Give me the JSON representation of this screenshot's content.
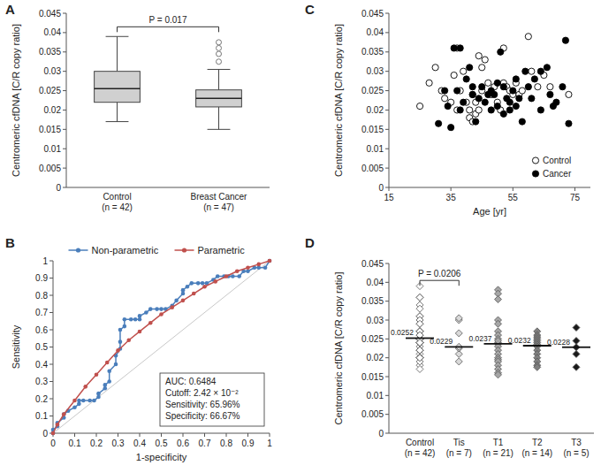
{
  "chart_data": [
    {
      "type": "box",
      "title": "A",
      "y_label": "Centromeric cfDNA [C/R copy ratio]",
      "categories": [
        "Control\n(n = 42)",
        "Breast Cancer\n(n = 47)"
      ],
      "boxes": [
        {
          "min": 0.017,
          "q1": 0.022,
          "median": 0.0255,
          "q3": 0.03,
          "max": 0.039,
          "outliers": []
        },
        {
          "min": 0.015,
          "q1": 0.0208,
          "median": 0.023,
          "q3": 0.0252,
          "max": 0.0305,
          "outliers": [
            0.0325,
            0.0345,
            0.036,
            0.0375
          ]
        }
      ],
      "color": "#d0d0d0",
      "ylim": [
        0,
        0.045
      ],
      "yticks": [
        0,
        0.005,
        0.01,
        0.015,
        0.02,
        0.025,
        0.03,
        0.035,
        0.04,
        0.045
      ],
      "annotations": [
        {
          "text": "P = 0.017",
          "y": 0.0415
        }
      ]
    },
    {
      "type": "line",
      "title": "B",
      "x_label": "1-specificity",
      "y_label": "Sensitivity",
      "xlim": [
        0,
        1
      ],
      "ylim": [
        0,
        1
      ],
      "xticks": [
        0,
        0.1,
        0.2,
        0.3,
        0.4,
        0.5,
        0.6,
        0.7,
        0.8,
        0.9,
        1
      ],
      "yticks": [
        0,
        0.1,
        0.2,
        0.3,
        0.4,
        0.5,
        0.6,
        0.7,
        0.8,
        0.9,
        1
      ],
      "legend": "top",
      "series": [
        {
          "name": "Non-parametric",
          "color": "#4a7ebb",
          "marker": "circle",
          "x": [
            0,
            0,
            0.02,
            0.02,
            0.05,
            0.05,
            0.07,
            0.1,
            0.12,
            0.12,
            0.14,
            0.17,
            0.19,
            0.21,
            0.21,
            0.24,
            0.24,
            0.26,
            0.26,
            0.29,
            0.29,
            0.31,
            0.31,
            0.31,
            0.33,
            0.33,
            0.36,
            0.38,
            0.4,
            0.4,
            0.43,
            0.45,
            0.48,
            0.5,
            0.52,
            0.55,
            0.57,
            0.6,
            0.6,
            0.62,
            0.64,
            0.67,
            0.69,
            0.71,
            0.74,
            0.76,
            0.79,
            0.81,
            0.83,
            0.86,
            0.88,
            0.9,
            0.93,
            0.95,
            0.98,
            1
          ],
          "values": [
            0,
            0.02,
            0.04,
            0.06,
            0.09,
            0.11,
            0.13,
            0.15,
            0.17,
            0.19,
            0.19,
            0.19,
            0.19,
            0.21,
            0.23,
            0.26,
            0.28,
            0.3,
            0.36,
            0.4,
            0.45,
            0.49,
            0.53,
            0.6,
            0.62,
            0.66,
            0.66,
            0.66,
            0.66,
            0.68,
            0.7,
            0.72,
            0.72,
            0.72,
            0.72,
            0.74,
            0.77,
            0.81,
            0.83,
            0.85,
            0.87,
            0.87,
            0.87,
            0.87,
            0.89,
            0.91,
            0.91,
            0.91,
            0.91,
            0.91,
            0.94,
            0.94,
            0.96,
            0.96,
            0.96,
            1
          ]
        },
        {
          "name": "Parametric",
          "color": "#c0504d",
          "marker": "circle",
          "x": [
            0,
            0.02,
            0.05,
            0.1,
            0.15,
            0.2,
            0.25,
            0.3,
            0.35,
            0.4,
            0.45,
            0.5,
            0.55,
            0.6,
            0.65,
            0.7,
            0.75,
            0.8,
            0.85,
            0.9,
            0.95,
            1
          ],
          "values": [
            0,
            0.05,
            0.11,
            0.19,
            0.27,
            0.34,
            0.41,
            0.48,
            0.54,
            0.59,
            0.64,
            0.69,
            0.73,
            0.77,
            0.81,
            0.85,
            0.88,
            0.91,
            0.94,
            0.96,
            0.98,
            1
          ]
        }
      ],
      "annotations": [
        "AUC: 0.6484",
        "Cutoff: 2.42 × 10⁻²",
        "Sensitivity: 65.96%",
        "Specificity: 66.67%"
      ]
    },
    {
      "type": "scatter",
      "title": "C",
      "x_label": "Age [yr]",
      "y_label": "Centromeric cfDNA [C/R copy ratio]",
      "xlim": [
        15,
        80
      ],
      "xticks": [
        15,
        35,
        55,
        75
      ],
      "ylim": [
        0,
        0.045
      ],
      "yticks": [
        0,
        0.005,
        0.01,
        0.015,
        0.02,
        0.025,
        0.03,
        0.035,
        0.04,
        0.045
      ],
      "legend": "bottom-right",
      "series": [
        {
          "name": "Control",
          "color": "#000000",
          "marker": "circle-open",
          "x": [
            25,
            28,
            30,
            32,
            33,
            35,
            36,
            37,
            37,
            38,
            39,
            40,
            41,
            41,
            42,
            42,
            43,
            43,
            44,
            44,
            45,
            45,
            46,
            47,
            48,
            49,
            50,
            51,
            52,
            52,
            53,
            54,
            55,
            56,
            57,
            58,
            60,
            61,
            63,
            65,
            67,
            73
          ],
          "values": [
            0.021,
            0.027,
            0.031,
            0.025,
            0.023,
            0.022,
            0.029,
            0.036,
            0.02,
            0.025,
            0.03,
            0.022,
            0.018,
            0.02,
            0.017,
            0.024,
            0.019,
            0.022,
            0.02,
            0.034,
            0.025,
            0.031,
            0.033,
            0.027,
            0.024,
            0.026,
            0.022,
            0.02,
            0.027,
            0.036,
            0.026,
            0.025,
            0.024,
            0.027,
            0.024,
            0.025,
            0.039,
            0.03,
            0.026,
            0.029,
            0.026,
            0.024
          ]
        },
        {
          "name": "Cancer",
          "color": "#000000",
          "marker": "circle",
          "x": [
            31,
            33,
            34,
            35,
            36,
            37,
            38,
            38,
            39,
            40,
            41,
            42,
            42,
            43,
            44,
            45,
            46,
            47,
            48,
            48,
            49,
            50,
            50,
            51,
            52,
            52,
            53,
            54,
            54,
            55,
            56,
            56,
            57,
            58,
            59,
            60,
            61,
            62,
            64,
            64,
            66,
            67,
            68,
            69,
            71,
            72,
            73
          ],
          "values": [
            0.0165,
            0.025,
            0.021,
            0.0155,
            0.036,
            0.025,
            0.036,
            0.02,
            0.022,
            0.028,
            0.031,
            0.024,
            0.026,
            0.017,
            0.023,
            0.026,
            0.022,
            0.024,
            0.025,
            0.02,
            0.024,
            0.027,
            0.021,
            0.035,
            0.019,
            0.026,
            0.023,
            0.02,
            0.022,
            0.025,
            0.028,
            0.021,
            0.023,
            0.017,
            0.03,
            0.026,
            0.023,
            0.028,
            0.02,
            0.03,
            0.031,
            0.024,
            0.021,
            0.022,
            0.026,
            0.038,
            0.0165
          ]
        }
      ]
    },
    {
      "type": "dot",
      "title": "D",
      "y_label": "Centromeric cfDNA [C/R copy ratio]",
      "categories": [
        "Control\n(n = 42)",
        "Tis\n(n = 7)",
        "T1\n(n = 21)",
        "T2\n(n = 14)",
        "T3\n(n = 5)"
      ],
      "values": [
        [
          0.021,
          0.027,
          0.031,
          0.025,
          0.023,
          0.022,
          0.029,
          0.036,
          0.02,
          0.025,
          0.03,
          0.022,
          0.018,
          0.02,
          0.017,
          0.024,
          0.019,
          0.022,
          0.02,
          0.034,
          0.025,
          0.031,
          0.033,
          0.027,
          0.024,
          0.026,
          0.022,
          0.02,
          0.027,
          0.036,
          0.026,
          0.025,
          0.024,
          0.027,
          0.024,
          0.025,
          0.039,
          0.03,
          0.026,
          0.029,
          0.026,
          0.024
        ],
        [
          0.019,
          0.021,
          0.0225,
          0.0229,
          0.0265,
          0.03,
          0.0305
        ],
        [
          0.038,
          0.037,
          0.0355,
          0.03,
          0.029,
          0.027,
          0.026,
          0.025,
          0.024,
          0.0237,
          0.023,
          0.022,
          0.021,
          0.02,
          0.0195,
          0.019,
          0.018,
          0.017,
          0.016,
          0.0155,
          0.0245
        ],
        [
          0.027,
          0.026,
          0.0255,
          0.025,
          0.0245,
          0.024,
          0.0235,
          0.023,
          0.022,
          0.021,
          0.02,
          0.019,
          0.018,
          0.0175
        ],
        [
          0.028,
          0.0245,
          0.0228,
          0.021,
          0.0175
        ]
      ],
      "medians": [
        0.0252,
        0.0229,
        0.0237,
        0.0232,
        0.0228
      ],
      "colors": [
        "#ffffff",
        "#d9d9d9",
        "#a6a6a6",
        "#7f7f7f",
        "#1a1a1a"
      ],
      "marker": "diamond",
      "ylim": [
        0,
        0.045
      ],
      "yticks": [
        0,
        0.005,
        0.01,
        0.015,
        0.02,
        0.025,
        0.03,
        0.035,
        0.04,
        0.045
      ],
      "annotations": [
        {
          "text": "P = 0.0206",
          "y": 0.0405
        }
      ]
    }
  ]
}
